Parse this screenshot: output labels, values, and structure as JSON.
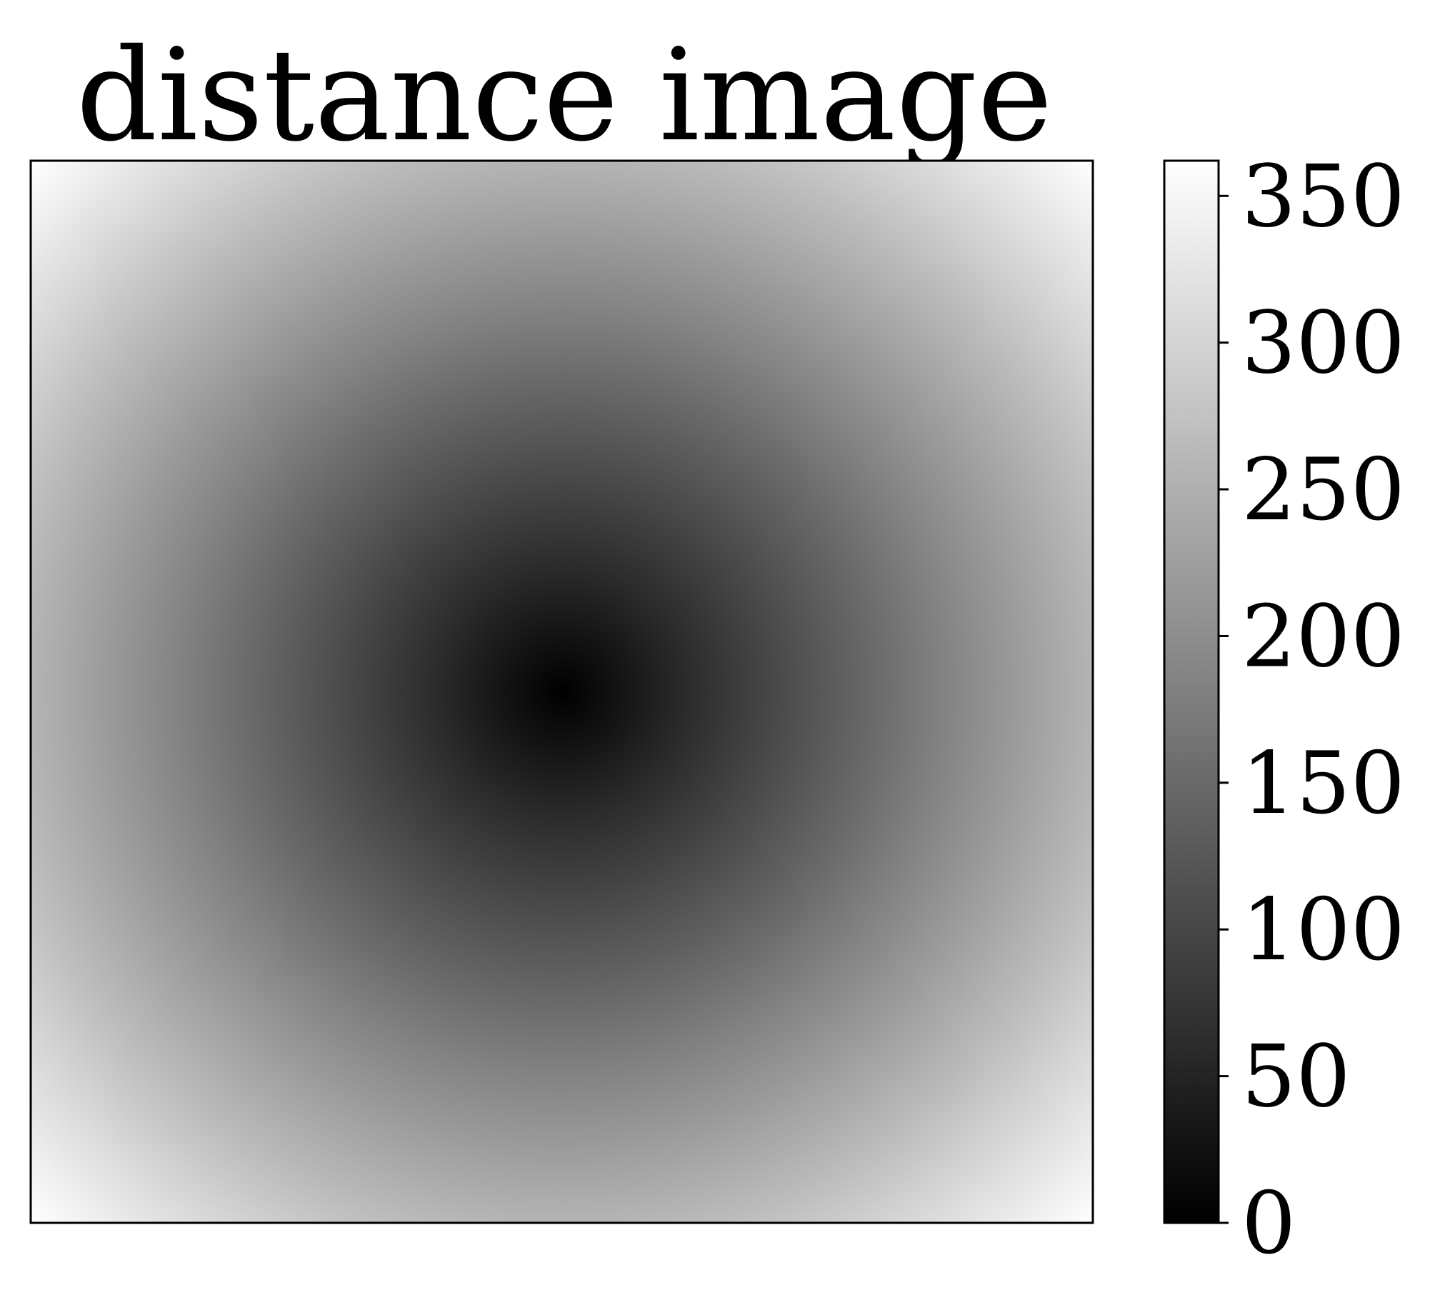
{
  "chart_data": {
    "type": "heatmap",
    "title": "distance image",
    "description_of_values": "",
    "colormap": "gray",
    "colorbar": {
      "min": 0,
      "max": 362,
      "ticks": [
        0,
        50,
        100,
        150,
        200,
        250,
        300,
        350
      ],
      "tick_labels": [
        "0",
        "50",
        "100",
        "150",
        "200",
        "250",
        "300",
        "350"
      ]
    },
    "image": {
      "width": 512,
      "height": 512,
      "center": [
        256,
        256
      ],
      "min_value": 0,
      "max_value": 362
    },
    "xticks_visible": false,
    "yticks_visible": false,
    "colors": {
      "low": "#000000",
      "high": "#ffffff",
      "frame": "#000000"
    }
  }
}
